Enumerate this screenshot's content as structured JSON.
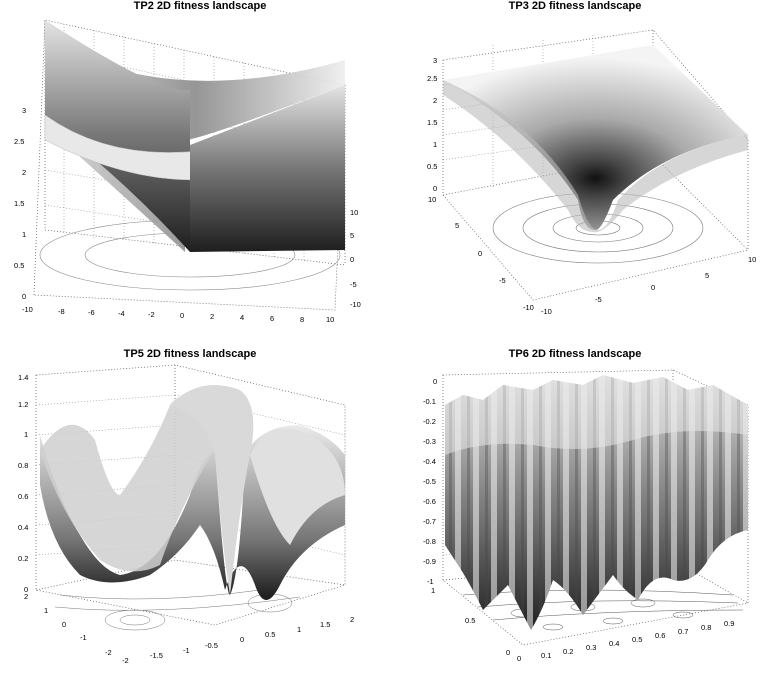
{
  "chart_data": [
    {
      "type": "surface",
      "title": "TP2 2D fitness landscape",
      "zlim": [
        0,
        3
      ],
      "x_ticks": [
        "-10",
        "-8",
        "-6",
        "-4",
        "-2",
        "0",
        "2",
        "4",
        "6",
        "8",
        "10"
      ],
      "y_ticks": [
        "-10",
        "-5",
        "0",
        "5",
        "10"
      ],
      "z_ticks": [
        "0",
        "0.5",
        "1",
        "1.5",
        "2",
        "2.5",
        "3"
      ],
      "grid": true,
      "contour_projection": true
    },
    {
      "type": "surface",
      "title": "TP3 2D fitness landscape",
      "zlim": [
        0,
        3
      ],
      "x_ticks": [
        "-10",
        "-5",
        "0",
        "5",
        "10"
      ],
      "y_ticks": [
        "-10",
        "-5",
        "0",
        "5",
        "10"
      ],
      "z_ticks": [
        "0",
        "0.5",
        "1",
        "1.5",
        "2",
        "2.5",
        "3"
      ],
      "grid": true,
      "contour_projection": true
    },
    {
      "type": "surface",
      "title": "TP5 2D fitness landscape",
      "zlim": [
        0,
        1.4
      ],
      "x_ticks": [
        "-2",
        "-1.5",
        "-1",
        "-0.5",
        "0",
        "0.5",
        "1",
        "1.5",
        "2"
      ],
      "y_ticks": [
        "-2",
        "-1",
        "0",
        "1",
        "2"
      ],
      "z_ticks": [
        "0",
        "0.2",
        "0.4",
        "0.6",
        "0.8",
        "1",
        "1.2",
        "1.4"
      ],
      "grid": true,
      "contour_projection": true
    },
    {
      "type": "surface",
      "title": "TP6 2D fitness landscape",
      "zlim": [
        -1,
        0
      ],
      "x_ticks": [
        "0",
        "0.1",
        "0.2",
        "0.3",
        "0.4",
        "0.5",
        "0.6",
        "0.7",
        "0.8",
        "0.9"
      ],
      "y_ticks": [
        "0",
        "0.5",
        "1"
      ],
      "z_ticks": [
        "-1",
        "-0.9",
        "-0.8",
        "-0.7",
        "-0.6",
        "-0.5",
        "-0.4",
        "-0.3",
        "-0.2",
        "-0.1",
        "0"
      ],
      "grid": true,
      "contour_projection": true
    }
  ]
}
